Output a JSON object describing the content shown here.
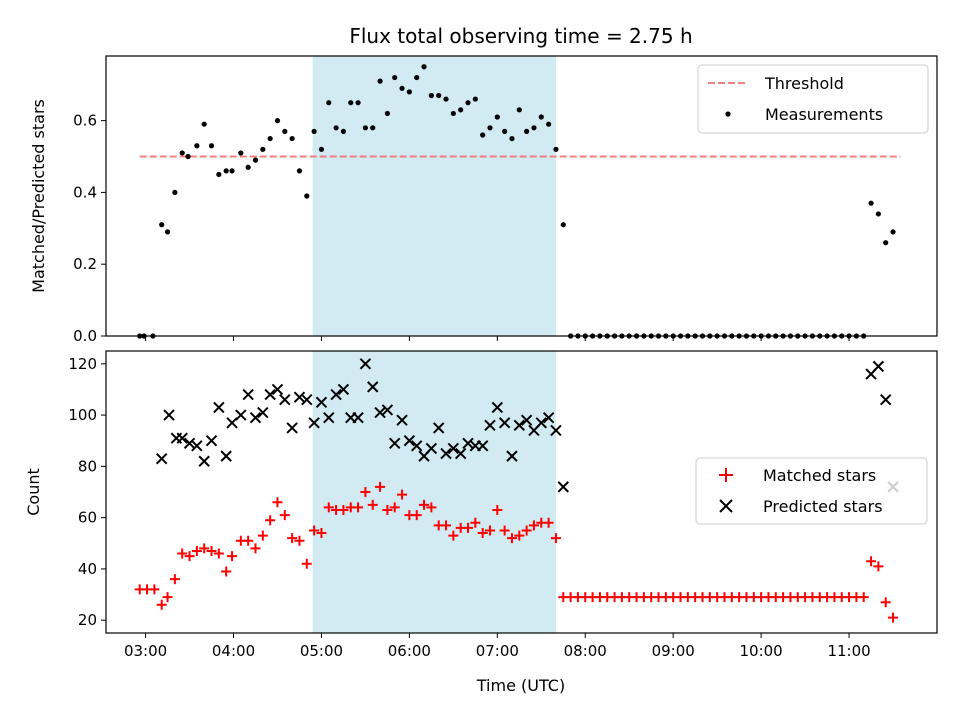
{
  "chart_data": {
    "title": "Flux total observing time = 2.75 h",
    "xlabel": "Time (UTC)",
    "x_ticks": [
      "03:00",
      "04:00",
      "05:00",
      "06:00",
      "07:00",
      "08:00",
      "09:00",
      "10:00",
      "11:00"
    ],
    "x_range": [
      "02:33",
      "12:00"
    ],
    "highlight_span": [
      "04:54",
      "07:40"
    ],
    "highlight_color": "#add8e6",
    "panels": [
      {
        "type": "scatter",
        "ylabel": "Matched/Predicted stars",
        "ylim": [
          0,
          0.78
        ],
        "y_ticks": [
          0.0,
          0.2,
          0.4,
          0.6
        ],
        "legend": "upper right",
        "threshold": {
          "name": "Threshold",
          "value": 0.5,
          "x_range": [
            "02:56",
            "11:35"
          ],
          "color": "#f08080"
        },
        "series": [
          {
            "name": "Measurements",
            "color": "#000000",
            "marker": "dot",
            "x": [
              "02:56",
              "02:59",
              "03:05",
              "03:11",
              "03:15",
              "03:20",
              "03:25",
              "03:29",
              "03:35",
              "03:40",
              "03:45",
              "03:50",
              "03:55",
              "03:59",
              "04:05",
              "04:10",
              "04:15",
              "04:20",
              "04:25",
              "04:30",
              "04:35",
              "04:40",
              "04:45",
              "04:50",
              "04:55",
              "05:00",
              "05:05",
              "05:10",
              "05:15",
              "05:20",
              "05:25",
              "05:30",
              "05:35",
              "05:40",
              "05:45",
              "05:50",
              "05:55",
              "06:00",
              "06:05",
              "06:10",
              "06:15",
              "06:20",
              "06:25",
              "06:30",
              "06:35",
              "06:40",
              "06:45",
              "06:50",
              "06:55",
              "07:00",
              "07:05",
              "07:10",
              "07:15",
              "07:20",
              "07:25",
              "07:30",
              "07:35",
              "07:40",
              "07:45",
              "07:50",
              "07:55",
              "08:00",
              "08:05",
              "08:10",
              "08:15",
              "08:20",
              "08:25",
              "08:30",
              "08:35",
              "08:40",
              "08:45",
              "08:50",
              "08:55",
              "09:00",
              "09:05",
              "09:10",
              "09:15",
              "09:20",
              "09:25",
              "09:30",
              "09:35",
              "09:40",
              "09:45",
              "09:50",
              "09:55",
              "10:00",
              "10:05",
              "10:10",
              "10:15",
              "10:20",
              "10:25",
              "10:30",
              "10:35",
              "10:40",
              "10:45",
              "10:50",
              "10:55",
              "11:00",
              "11:05",
              "11:10",
              "11:15",
              "11:20",
              "11:25",
              "11:30"
            ],
            "y": [
              0.0,
              0.0,
              0.0,
              0.31,
              0.29,
              0.4,
              0.51,
              0.5,
              0.53,
              0.59,
              0.53,
              0.45,
              0.46,
              0.46,
              0.51,
              0.47,
              0.49,
              0.52,
              0.55,
              0.6,
              0.57,
              0.55,
              0.46,
              0.39,
              0.57,
              0.52,
              0.65,
              0.58,
              0.57,
              0.65,
              0.65,
              0.58,
              0.58,
              0.71,
              0.62,
              0.72,
              0.69,
              0.68,
              0.72,
              0.75,
              0.67,
              0.67,
              0.66,
              0.62,
              0.63,
              0.65,
              0.66,
              0.56,
              0.58,
              0.61,
              0.57,
              0.55,
              0.63,
              0.57,
              0.58,
              0.61,
              0.59,
              0.52,
              0.31,
              0.0,
              0.0,
              0.0,
              0.0,
              0.0,
              0.0,
              0.0,
              0.0,
              0.0,
              0.0,
              0.0,
              0.0,
              0.0,
              0.0,
              0.0,
              0.0,
              0.0,
              0.0,
              0.0,
              0.0,
              0.0,
              0.0,
              0.0,
              0.0,
              0.0,
              0.0,
              0.0,
              0.0,
              0.0,
              0.0,
              0.0,
              0.0,
              0.0,
              0.0,
              0.0,
              0.0,
              0.0,
              0.0,
              0.0,
              0.0,
              0.0,
              0.37,
              0.34,
              0.26,
              0.29
            ]
          }
        ]
      },
      {
        "type": "scatter",
        "ylabel": "Count",
        "ylim": [
          15,
          125
        ],
        "y_ticks": [
          20,
          40,
          60,
          80,
          100,
          120
        ],
        "legend": "center right",
        "series": [
          {
            "name": "Matched stars",
            "color": "#ff0000",
            "marker": "plus",
            "x": [
              "02:56",
              "03:01",
              "03:06",
              "03:11",
              "03:15",
              "03:20",
              "03:25",
              "03:30",
              "03:35",
              "03:40",
              "03:45",
              "03:50",
              "03:55",
              "03:59",
              "04:05",
              "04:10",
              "04:15",
              "04:20",
              "04:25",
              "04:30",
              "04:35",
              "04:40",
              "04:45",
              "04:50",
              "04:55",
              "05:00",
              "05:05",
              "05:10",
              "05:15",
              "05:20",
              "05:25",
              "05:30",
              "05:35",
              "05:40",
              "05:45",
              "05:50",
              "05:55",
              "06:00",
              "06:05",
              "06:10",
              "06:15",
              "06:20",
              "06:25",
              "06:30",
              "06:35",
              "06:40",
              "06:45",
              "06:50",
              "06:55",
              "07:00",
              "07:05",
              "07:10",
              "07:15",
              "07:20",
              "07:25",
              "07:30",
              "07:35",
              "07:40",
              "07:45",
              "07:50",
              "07:55",
              "08:00",
              "08:05",
              "08:10",
              "08:15",
              "08:20",
              "08:25",
              "08:30",
              "08:35",
              "08:40",
              "08:45",
              "08:50",
              "08:55",
              "09:00",
              "09:05",
              "09:10",
              "09:15",
              "09:20",
              "09:25",
              "09:30",
              "09:35",
              "09:40",
              "09:45",
              "09:50",
              "09:55",
              "10:00",
              "10:05",
              "10:10",
              "10:15",
              "10:20",
              "10:25",
              "10:30",
              "10:35",
              "10:40",
              "10:45",
              "10:50",
              "10:55",
              "11:00",
              "11:05",
              "11:10",
              "11:15",
              "11:20",
              "11:25",
              "11:30"
            ],
            "y": [
              32,
              32,
              32,
              26,
              29,
              36,
              46,
              45,
              47,
              48,
              47,
              46,
              39,
              45,
              51,
              51,
              48,
              53,
              59,
              66,
              61,
              52,
              51,
              42,
              55,
              54,
              64,
              63,
              63,
              64,
              64,
              70,
              65,
              72,
              63,
              64,
              69,
              61,
              61,
              65,
              64,
              57,
              57,
              53,
              56,
              56,
              58,
              54,
              55,
              63,
              55,
              52,
              53,
              55,
              57,
              58,
              58,
              52,
              29,
              29,
              29,
              29,
              29,
              29,
              29,
              29,
              29,
              29,
              29,
              29,
              29,
              29,
              29,
              29,
              29,
              29,
              29,
              29,
              29,
              29,
              29,
              29,
              29,
              29,
              29,
              29,
              29,
              29,
              29,
              29,
              29,
              29,
              29,
              29,
              29,
              29,
              29,
              29,
              29,
              29,
              43,
              41,
              27,
              21
            ]
          },
          {
            "name": "Predicted stars",
            "color": "#000000",
            "marker": "x",
            "x": [
              "03:11",
              "03:16",
              "03:21",
              "03:25",
              "03:30",
              "03:35",
              "03:40",
              "03:45",
              "03:50",
              "03:55",
              "03:59",
              "04:05",
              "04:10",
              "04:15",
              "04:20",
              "04:25",
              "04:30",
              "04:35",
              "04:40",
              "04:45",
              "04:50",
              "04:55",
              "05:00",
              "05:05",
              "05:10",
              "05:15",
              "05:20",
              "05:25",
              "05:30",
              "05:35",
              "05:40",
              "05:45",
              "05:50",
              "05:55",
              "06:00",
              "06:05",
              "06:10",
              "06:15",
              "06:20",
              "06:25",
              "06:30",
              "06:35",
              "06:40",
              "06:45",
              "06:50",
              "06:55",
              "07:00",
              "07:05",
              "07:10",
              "07:15",
              "07:20",
              "07:25",
              "07:30",
              "07:35",
              "07:40",
              "07:45",
              "11:15",
              "11:20",
              "11:25",
              "11:30"
            ],
            "y": [
              83,
              100,
              91,
              91,
              89,
              88,
              82,
              90,
              103,
              84,
              97,
              100,
              108,
              99,
              101,
              108,
              110,
              106,
              95,
              107,
              106,
              97,
              105,
              99,
              108,
              110,
              99,
              99,
              120,
              111,
              101,
              102,
              89,
              98,
              90,
              88,
              84,
              87,
              95,
              85,
              87,
              85,
              89,
              88,
              88,
              96,
              103,
              97,
              84,
              96,
              98,
              94,
              97,
              99,
              94,
              72,
              116,
              119,
              106,
              72
            ]
          }
        ]
      }
    ]
  }
}
